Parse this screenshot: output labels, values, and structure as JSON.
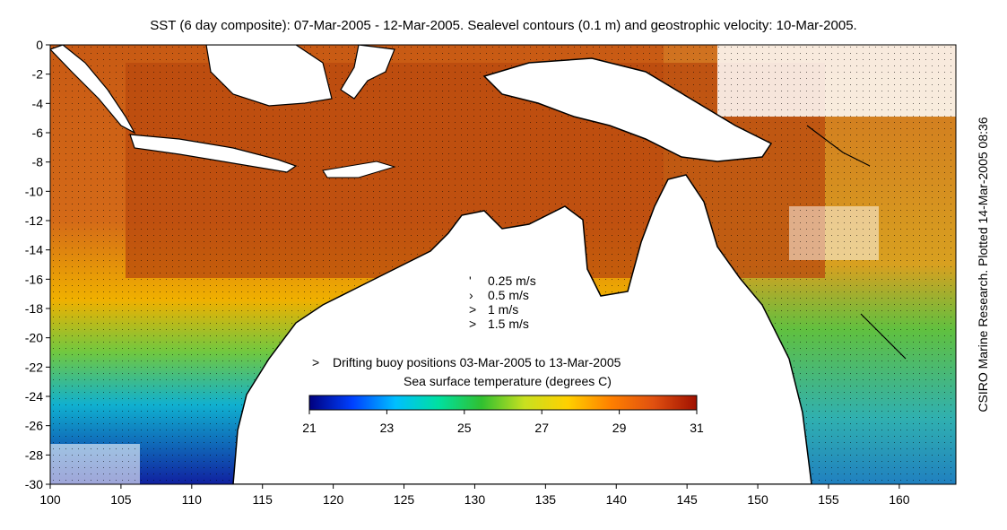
{
  "title": "SST (6 day composite): 07-Mar-2005 - 12-Mar-2005. Sealevel contours (0.1 m) and geostrophic velocity: 10-Mar-2005.",
  "credit": "CSIRO Marine Research. Plotted 14-Mar-2005 08:36",
  "axes": {
    "x_ticks": [
      "100",
      "105",
      "110",
      "115",
      "120",
      "125",
      "130",
      "135",
      "140",
      "145",
      "150",
      "155",
      "160"
    ],
    "y_ticks": [
      "0",
      "-2",
      "-4",
      "-6",
      "-8",
      "-10",
      "-12",
      "-14",
      "-16",
      "-18",
      "-20",
      "-22",
      "-24",
      "-26",
      "-28",
      "-30"
    ],
    "xlim": [
      100,
      164
    ],
    "ylim": [
      -30,
      0
    ]
  },
  "velocity_legend": [
    {
      "label": "0.25 m/s",
      "glyph": "'"
    },
    {
      "label": "0.5 m/s",
      "glyph": "›"
    },
    {
      "label": "1 m/s",
      "glyph": ">"
    },
    {
      "label": "1.5 m/s",
      "glyph": ">"
    }
  ],
  "buoy_legend": {
    "label": "Drifting buoy positions 03-Mar-2005 to 13-Mar-2005",
    "color": "#ff44ff"
  },
  "colorbar": {
    "title": "Sea surface temperature (degrees C)",
    "ticks": [
      "21",
      "23",
      "25",
      "27",
      "29",
      "31"
    ],
    "range": [
      21,
      31
    ],
    "colors": [
      "#00007f",
      "#0040ff",
      "#00bfff",
      "#00e0a0",
      "#30c030",
      "#c8e020",
      "#ffd000",
      "#ff8000",
      "#e05010",
      "#a01000"
    ]
  },
  "palette": {
    "warm": "#c85a14",
    "hot": "#a8400c",
    "land": "#ffffff",
    "coast": "#000000"
  }
}
